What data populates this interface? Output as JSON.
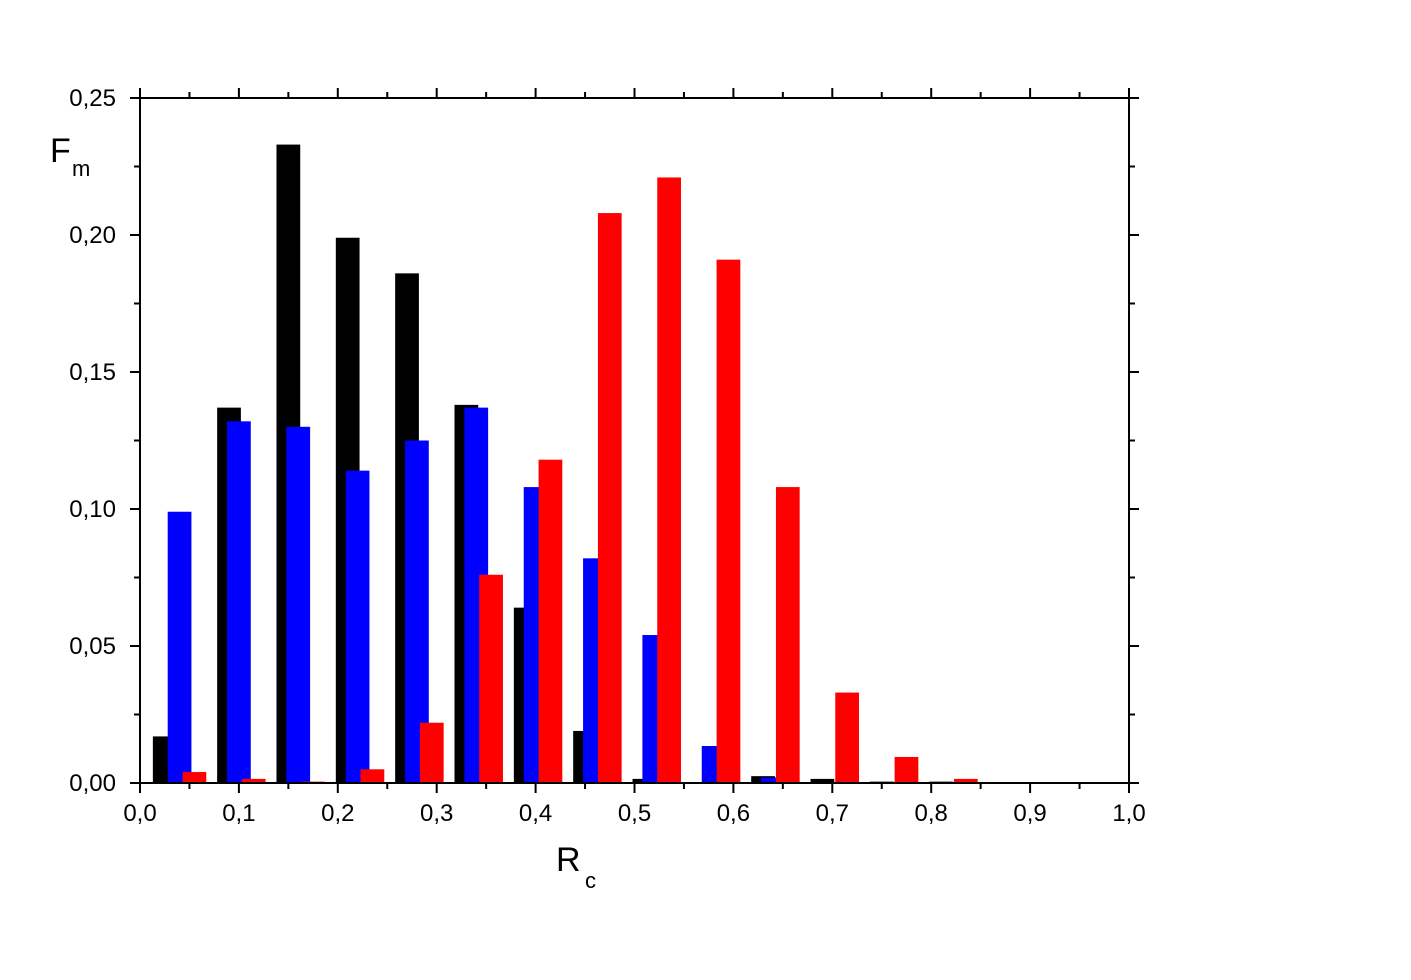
{
  "chart_data": {
    "type": "bar",
    "title": "",
    "xlabel": {
      "main": "R",
      "sub": "c"
    },
    "ylabel": {
      "main": "F",
      "sub": "m"
    },
    "xlim": [
      0.0,
      1.0
    ],
    "ylim": [
      0.0,
      0.25
    ],
    "x_ticks": [
      "0,0",
      "0,1",
      "0,2",
      "0,3",
      "0,4",
      "0,5",
      "0,6",
      "0,7",
      "0,8",
      "0,9",
      "1,0"
    ],
    "y_ticks": [
      "0,00",
      "0,05",
      "0,10",
      "0,15",
      "0,20",
      "0,25"
    ],
    "grid": false,
    "legend": "none",
    "series": [
      {
        "color": "#000000",
        "x": [
          0.025,
          0.09,
          0.15,
          0.21,
          0.27,
          0.33,
          0.39,
          0.45,
          0.51,
          0.63,
          0.69,
          0.75,
          0.81
        ],
        "values": [
          0.017,
          0.137,
          0.233,
          0.199,
          0.186,
          0.138,
          0.064,
          0.019,
          0.0015,
          0.0025,
          0.0015,
          0.0005,
          0.0005
        ],
        "width": 0.024
      },
      {
        "color": "#0000ff",
        "x": [
          0.04,
          0.1,
          0.16,
          0.22,
          0.28,
          0.34,
          0.4,
          0.46,
          0.52,
          0.58,
          0.64
        ],
        "values": [
          0.099,
          0.132,
          0.13,
          0.114,
          0.125,
          0.137,
          0.108,
          0.082,
          0.054,
          0.0135,
          0.002
        ],
        "width": 0.024
      },
      {
        "color": "#ff0000",
        "x": [
          0.055,
          0.115,
          0.175,
          0.235,
          0.295,
          0.355,
          0.415,
          0.475,
          0.535,
          0.595,
          0.655,
          0.715,
          0.775,
          0.835
        ],
        "values": [
          0.004,
          0.0015,
          0.0005,
          0.005,
          0.022,
          0.076,
          0.118,
          0.208,
          0.221,
          0.191,
          0.108,
          0.033,
          0.0095,
          0.0015
        ],
        "width": 0.024
      }
    ]
  }
}
